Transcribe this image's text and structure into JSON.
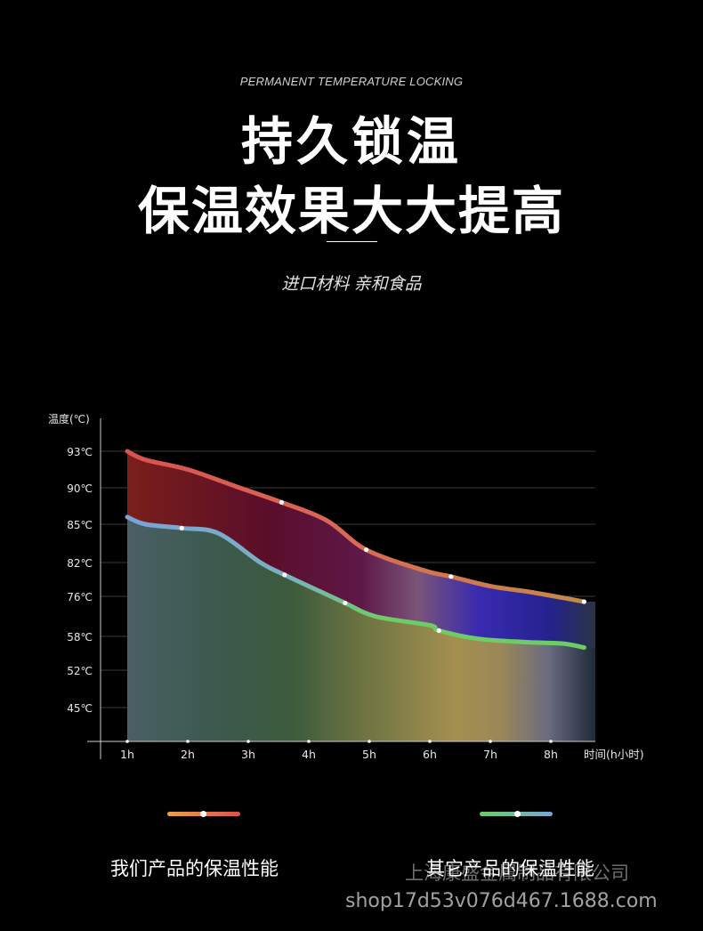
{
  "header": {
    "subtitle_en": "PERMANENT TEMPERATURE LOCKING",
    "title_line1": "持久锁温",
    "title_line2": "保温效果大大提高",
    "tagline": "进口材料 亲和食品"
  },
  "chart_data": {
    "type": "area",
    "ylabel": "温度(℃)",
    "xlabel": "时间(h小时)",
    "x_tick_labels": [
      "1h",
      "2h",
      "3h",
      "4h",
      "5h",
      "6h",
      "7h",
      "8h"
    ],
    "y_tick_labels": [
      "93℃",
      "90℃",
      "85℃",
      "82℃",
      "76℃",
      "58℃",
      "52℃",
      "45℃"
    ],
    "series": [
      {
        "name": "我们产品的保温性能",
        "x": [
          1.0,
          1.3,
          2.0,
          2.8,
          3.55,
          4.3,
          4.95,
          5.9,
          6.35,
          7.0,
          7.7,
          8.55
        ],
        "y": [
          93,
          92.3,
          91.5,
          90.1,
          88.0,
          85.5,
          83.0,
          80.6,
          79.5,
          77.8,
          76.7,
          74.8
        ],
        "marker_x": [
          3.55,
          4.95,
          6.35,
          8.55
        ]
      },
      {
        "name": "其它产品的保温性能",
        "x": [
          1.0,
          1.3,
          1.9,
          2.5,
          3.2,
          3.6,
          4.2,
          4.6,
          5.1,
          6.0,
          6.15,
          6.8,
          7.6,
          8.2,
          8.55
        ],
        "y": [
          86.0,
          85.0,
          84.7,
          84.3,
          82.0,
          79.8,
          76.8,
          74.5,
          71.5,
          69.5,
          68.3,
          66.5,
          65.8,
          65.5,
          64.7
        ],
        "marker_x": [
          1.9,
          3.6,
          4.6,
          6.15
        ]
      }
    ],
    "colors": {
      "ours_line_start": "#d9534f",
      "ours_line_end": "#c48a4a",
      "others_line_start": "#7aa3d8",
      "others_line_end": "#6dcc66",
      "legend_ours_start": "#e8a24a",
      "legend_ours_end": "#d9534f",
      "legend_others_start": "#6dcc66",
      "legend_others_end": "#7aa3d8"
    }
  },
  "legend": {
    "ours": "我们产品的保温性能",
    "others": "其它产品的保温性能"
  },
  "watermark": {
    "company": "上海康盛金属制品有限公司",
    "shop": "shop17d53v076d467.1688.com"
  }
}
